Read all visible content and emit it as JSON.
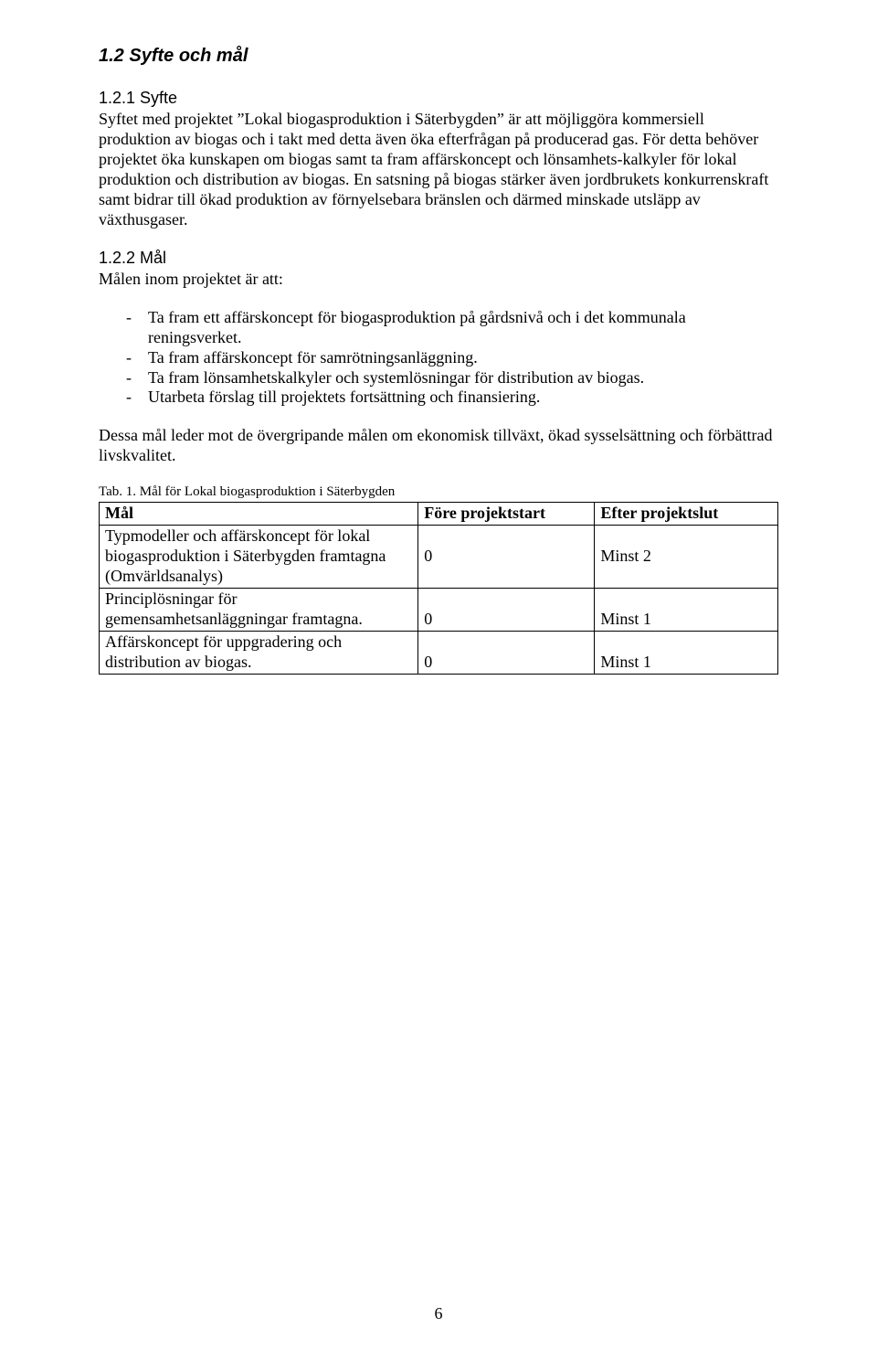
{
  "section": {
    "heading": "1.2 Syfte och mål"
  },
  "sub1": {
    "heading": "1.2.1 Syfte",
    "para": "Syftet med projektet ”Lokal biogasproduktion i Säterbygden” är att möjliggöra kommersiell produktion av biogas och i takt med detta även öka efterfrågan på producerad gas. För detta behöver projektet öka kunskapen om biogas samt ta fram affärskoncept och lönsamhets-kalkyler för lokal produktion och distribution av biogas. En satsning på biogas stärker även jordbrukets konkurrenskraft samt bidrar till ökad produktion av förnyelsebara bränslen och därmed minskade utsläpp av växthusgaser."
  },
  "sub2": {
    "heading": "1.2.2 Mål",
    "intro": "Målen inom projektet är att:",
    "bullets": [
      "Ta fram ett affärskoncept för biogasproduktion på gårdsnivå och i det kommunala reningsverket.",
      "Ta fram affärskoncept för samrötningsanläggning.",
      "Ta fram lönsamhetskalkyler och systemlösningar för distribution av biogas.",
      "Utarbeta förslag till projektets fortsättning och finansiering."
    ],
    "outro": "Dessa mål leder mot de övergripande målen om ekonomisk tillväxt, ökad sysselsättning och förbättrad livskvalitet."
  },
  "table": {
    "caption": "Tab. 1. Mål för Lokal biogasproduktion i Säterbygden",
    "columns": [
      "Mål",
      "Före projektstart",
      "Efter projektslut"
    ],
    "rows": [
      [
        "Typmodeller och affärskoncept för lokal biogasproduktion i Säterbygden framtagna (Omvärldsanalys)",
        "0",
        "Minst 2"
      ],
      [
        "Principlösningar för gemensamhetsanläggningar framtagna.",
        "0",
        "Minst 1"
      ],
      [
        "Affärskoncept för uppgradering och distribution av biogas.",
        "0",
        "Minst 1"
      ]
    ]
  },
  "page_number": "6"
}
